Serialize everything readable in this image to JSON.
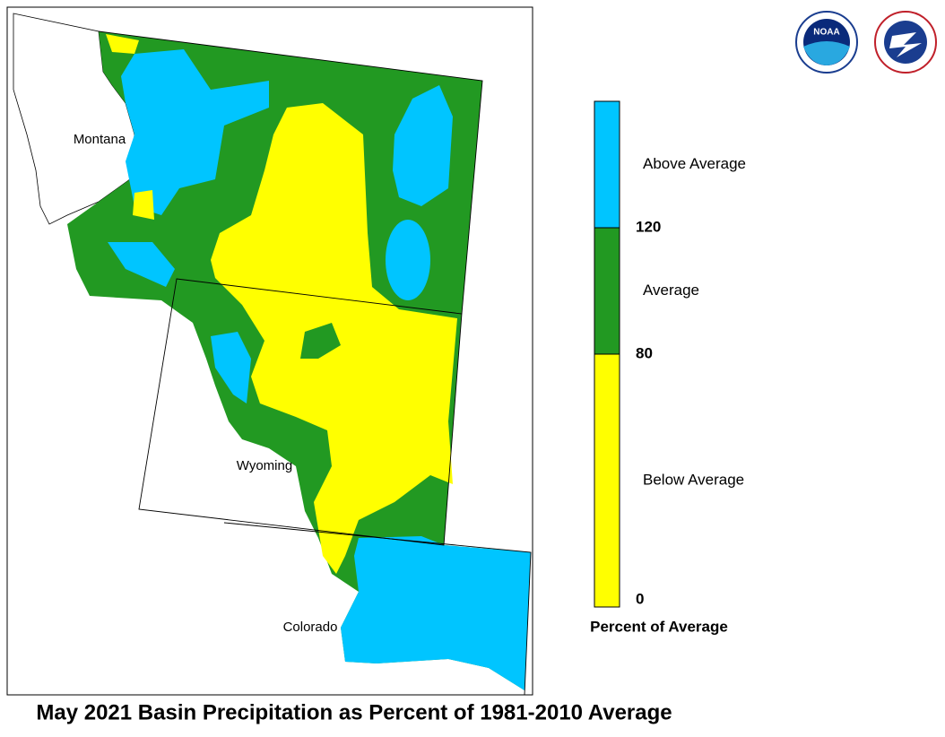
{
  "title": "May 2021 Basin Precipitation as Percent of 1981-2010 Average",
  "logos": {
    "noaa": "NOAA"
  },
  "map": {
    "labels": [
      "Montana",
      "Wyoming",
      "Colorado"
    ]
  },
  "legend": {
    "lim": [
      0,
      160
    ],
    "ticks": [
      0,
      80,
      120
    ],
    "categories": [
      {
        "label": "Below Average",
        "color": "#ffff00"
      },
      {
        "label": "Average",
        "color": "#229922"
      },
      {
        "label": "Above Average",
        "color": "#00c5ff"
      }
    ],
    "axis_label": "Percent of Average"
  }
}
